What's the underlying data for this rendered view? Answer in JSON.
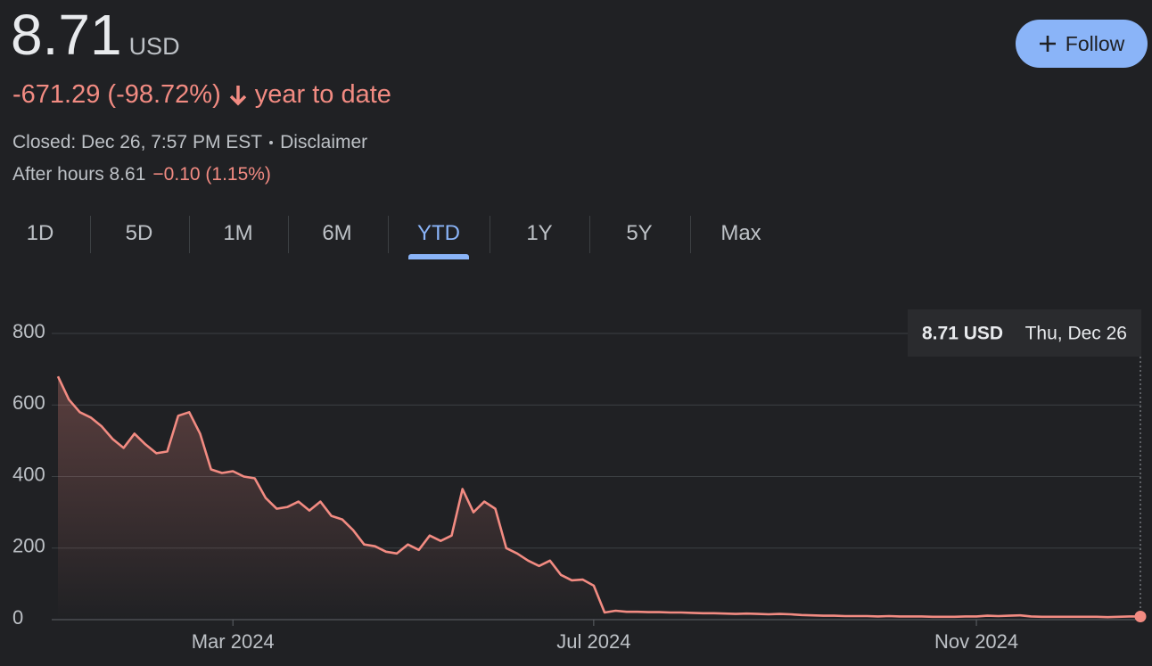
{
  "header": {
    "price": "8.71",
    "currency": "USD",
    "change": "-671.29 (-98.72%)",
    "change_period": "year to date",
    "closed": "Closed: Dec 26, 7:57 PM EST",
    "disclaimer": "Disclaimer",
    "after_hours": "After hours 8.61",
    "after_hours_change": "−0.10 (1.15%)",
    "follow": "Follow"
  },
  "tabs": {
    "items": [
      "1D",
      "5D",
      "1M",
      "6M",
      "YTD",
      "1Y",
      "5Y",
      "Max"
    ],
    "selected_index": 4
  },
  "chart_data": {
    "type": "line",
    "color": "#f28b82",
    "categories": [
      null,
      null,
      null,
      null,
      null,
      null,
      null,
      null,
      null,
      null,
      null,
      null,
      null,
      null,
      null,
      null,
      "Mar 2024",
      null,
      null,
      null,
      null,
      null,
      null,
      null,
      null,
      null,
      null,
      null,
      null,
      null,
      null,
      null,
      null,
      null,
      null,
      null,
      null,
      null,
      null,
      null,
      null,
      null,
      null,
      null,
      null,
      null,
      null,
      null,
      null,
      "Jul 2024",
      null,
      null,
      null,
      null,
      null,
      null,
      null,
      null,
      null,
      null,
      null,
      null,
      null,
      null,
      null,
      null,
      null,
      null,
      null,
      null,
      null,
      null,
      null,
      null,
      null,
      null,
      null,
      null,
      null,
      null,
      null,
      null,
      null,
      null,
      "Nov 2024",
      null,
      null,
      null,
      null,
      null,
      null,
      null,
      null,
      null,
      null,
      null,
      null,
      null,
      null,
      null
    ],
    "values": [
      680,
      615,
      580,
      565,
      540,
      505,
      480,
      520,
      490,
      465,
      470,
      570,
      580,
      520,
      420,
      410,
      415,
      400,
      395,
      340,
      310,
      315,
      330,
      305,
      330,
      290,
      280,
      250,
      210,
      205,
      190,
      185,
      210,
      195,
      235,
      220,
      235,
      365,
      300,
      330,
      310,
      200,
      185,
      165,
      150,
      165,
      125,
      110,
      112,
      95,
      20,
      25,
      22,
      22,
      21,
      21,
      20,
      20,
      19,
      18,
      18,
      17,
      16,
      17,
      16,
      15,
      16,
      15,
      13,
      12,
      11,
      11,
      10,
      10,
      10,
      9,
      10,
      9,
      9,
      9,
      8,
      8,
      8,
      9,
      9,
      11,
      10,
      11,
      12,
      9,
      8,
      8,
      8,
      8,
      8,
      8,
      7,
      8,
      9,
      8.71
    ],
    "ylim": [
      0,
      800
    ],
    "yticks": [
      0,
      200,
      400,
      600,
      800
    ],
    "grid": true,
    "tooltip": {
      "price": "8.71 USD",
      "date": "Thu, Dec 26"
    }
  }
}
